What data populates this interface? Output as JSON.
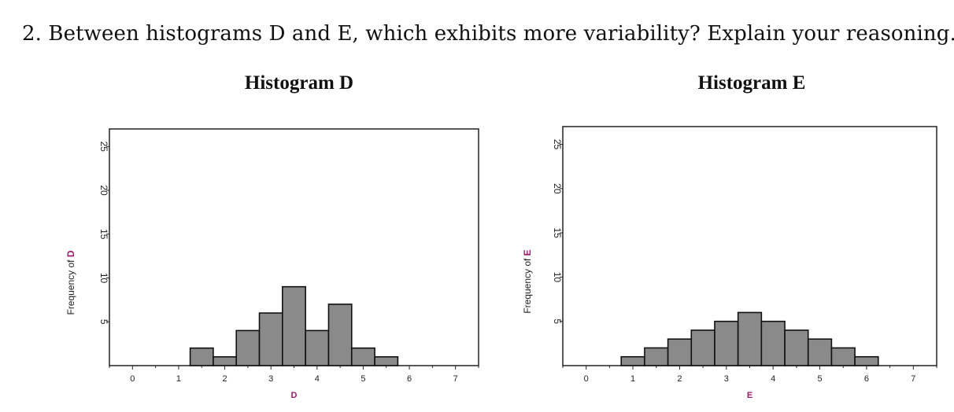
{
  "question": "2. Between histograms D and E, which exhibits more variability? Explain your reasoning.",
  "chart_data": [
    {
      "type": "bar",
      "title": "Histogram D",
      "xlabel": "D",
      "ylabel": "Frequency of D",
      "xlim": [
        -0.5,
        7.5
      ],
      "ylim": [
        0,
        27
      ],
      "x_ticks": [
        0,
        1,
        2,
        3,
        4,
        5,
        6,
        7
      ],
      "y_ticks": [
        5,
        10,
        15,
        20,
        25
      ],
      "bin_width": 0.5,
      "bins": [
        {
          "start": 1.25,
          "end": 1.75,
          "count": 2
        },
        {
          "start": 1.75,
          "end": 2.25,
          "count": 1
        },
        {
          "start": 2.25,
          "end": 2.75,
          "count": 4
        },
        {
          "start": 2.75,
          "end": 3.25,
          "count": 6
        },
        {
          "start": 3.25,
          "end": 3.75,
          "count": 9
        },
        {
          "start": 3.75,
          "end": 4.25,
          "count": 4
        },
        {
          "start": 4.25,
          "end": 4.75,
          "count": 7
        },
        {
          "start": 4.75,
          "end": 5.25,
          "count": 2
        },
        {
          "start": 5.25,
          "end": 5.75,
          "count": 1
        }
      ],
      "bar_color": "#8a8a8a",
      "label_accent_color": "#9c1a6b"
    },
    {
      "type": "bar",
      "title": "Histogram E",
      "xlabel": "E",
      "ylabel": "Frequency of E",
      "xlim": [
        -0.5,
        7.5
      ],
      "ylim": [
        0,
        27
      ],
      "x_ticks": [
        0,
        1,
        2,
        3,
        4,
        5,
        6,
        7
      ],
      "y_ticks": [
        5,
        10,
        15,
        20,
        25
      ],
      "bin_width": 0.5,
      "bins": [
        {
          "start": 0.75,
          "end": 1.25,
          "count": 1
        },
        {
          "start": 1.25,
          "end": 1.75,
          "count": 2
        },
        {
          "start": 1.75,
          "end": 2.25,
          "count": 3
        },
        {
          "start": 2.25,
          "end": 2.75,
          "count": 4
        },
        {
          "start": 2.75,
          "end": 3.25,
          "count": 5
        },
        {
          "start": 3.25,
          "end": 3.75,
          "count": 6
        },
        {
          "start": 3.75,
          "end": 4.25,
          "count": 5
        },
        {
          "start": 4.25,
          "end": 4.75,
          "count": 4
        },
        {
          "start": 4.75,
          "end": 5.25,
          "count": 3
        },
        {
          "start": 5.25,
          "end": 5.75,
          "count": 2
        },
        {
          "start": 5.75,
          "end": 6.25,
          "count": 1
        }
      ],
      "bar_color": "#8a8a8a",
      "label_accent_color": "#9c1a6b"
    }
  ]
}
